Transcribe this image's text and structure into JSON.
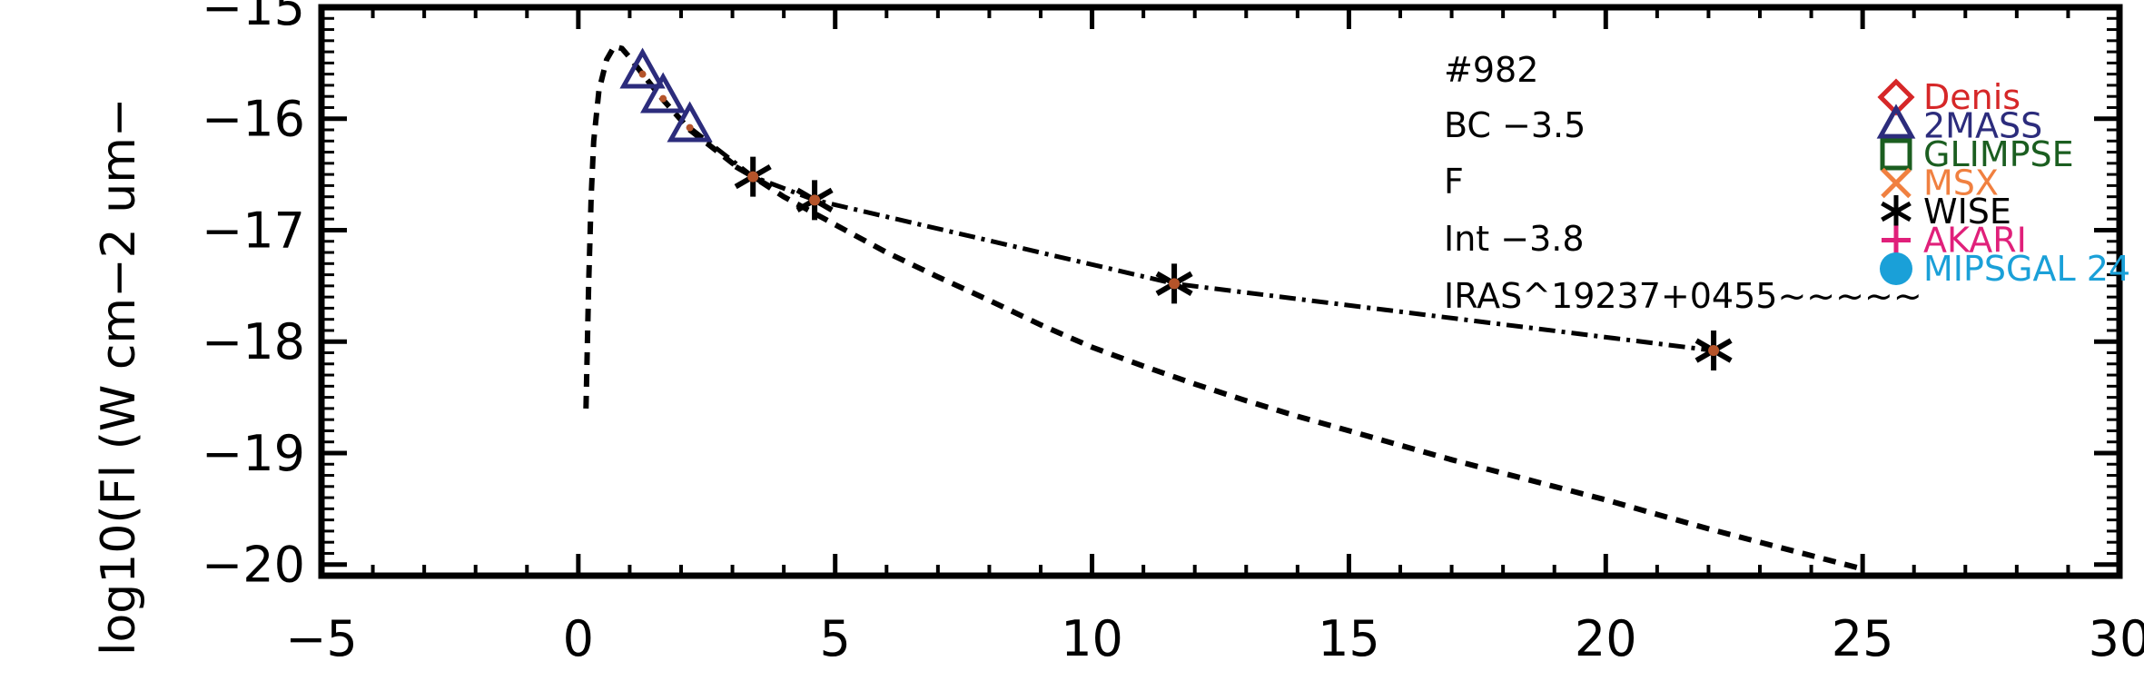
{
  "chart_data": {
    "type": "scatter",
    "xlim": [
      -5,
      30
    ],
    "ylim": [
      -20.1,
      -15.0
    ],
    "ylabel": "log10(Fl (W cm−2 um−",
    "x_ticks": [
      "−5",
      "0",
      "5",
      "10",
      "15",
      "20",
      "25",
      "30"
    ],
    "x_tick_values": [
      -5,
      0,
      5,
      10,
      15,
      20,
      25,
      30
    ],
    "y_ticks": [
      "−15",
      "−16",
      "−17",
      "−18",
      "−19",
      "−20"
    ],
    "y_tick_values": [
      -15,
      -16,
      -17,
      -18,
      -19,
      -20
    ],
    "annotations": [
      "#982",
      "BC  −3.5",
      "F",
      "Int  −3.8",
      "IRAS^19237+0455~~~~~"
    ],
    "legend": [
      {
        "label": "Denis",
        "color": "#d62728",
        "marker": "diamond"
      },
      {
        "label": "2MASS",
        "color": "#2c2c7c",
        "marker": "triangle"
      },
      {
        "label": "GLIMPSE",
        "color": "#1b5e20",
        "marker": "square"
      },
      {
        "label": "MSX",
        "color": "#f08040",
        "marker": "x"
      },
      {
        "label": "WISE",
        "color": "#000000",
        "marker": "asterisk"
      },
      {
        "label": "AKARI",
        "color": "#e0207a",
        "marker": "plus"
      },
      {
        "label": "MIPSGAL 24",
        "color": "#1aa0d8",
        "marker": "circle"
      }
    ],
    "series": [
      {
        "name": "2MASS",
        "marker": "triangle",
        "points": [
          [
            1.25,
            -15.6
          ],
          [
            1.65,
            -15.82
          ],
          [
            2.17,
            -16.08
          ]
        ]
      },
      {
        "name": "WISE",
        "marker": "asterisk",
        "points": [
          [
            3.4,
            -16.52
          ],
          [
            4.6,
            -16.73
          ],
          [
            11.6,
            -17.48
          ],
          [
            22.1,
            -18.08
          ]
        ]
      }
    ],
    "model_curve": [
      [
        0.15,
        -18.6
      ],
      [
        0.2,
        -17.5
      ],
      [
        0.25,
        -16.7
      ],
      [
        0.3,
        -16.2
      ],
      [
        0.4,
        -15.75
      ],
      [
        0.55,
        -15.47
      ],
      [
        0.7,
        -15.35
      ],
      [
        0.85,
        -15.37
      ],
      [
        1.0,
        -15.45
      ],
      [
        1.25,
        -15.6
      ],
      [
        1.65,
        -15.83
      ],
      [
        2.17,
        -16.1
      ],
      [
        3.0,
        -16.4
      ],
      [
        4.0,
        -16.7
      ],
      [
        5.0,
        -16.95
      ],
      [
        6.0,
        -17.2
      ],
      [
        7.0,
        -17.42
      ],
      [
        8.0,
        -17.63
      ],
      [
        9.0,
        -17.85
      ],
      [
        10.0,
        -18.05
      ],
      [
        11.0,
        -18.22
      ],
      [
        12.0,
        -18.38
      ],
      [
        13.0,
        -18.53
      ],
      [
        14.0,
        -18.67
      ],
      [
        15.0,
        -18.8
      ],
      [
        16.0,
        -18.93
      ],
      [
        17.0,
        -19.06
      ],
      [
        18.0,
        -19.18
      ],
      [
        19.0,
        -19.3
      ],
      [
        20.0,
        -19.42
      ],
      [
        21.0,
        -19.55
      ],
      [
        22.0,
        -19.68
      ],
      [
        23.0,
        -19.8
      ],
      [
        24.0,
        -19.92
      ],
      [
        25.0,
        -20.04
      ]
    ],
    "fit_curve": [
      [
        2.17,
        -16.08
      ],
      [
        3.4,
        -16.52
      ],
      [
        4.6,
        -16.73
      ],
      [
        11.6,
        -17.48
      ],
      [
        22.1,
        -18.08
      ]
    ],
    "grid": false
  }
}
